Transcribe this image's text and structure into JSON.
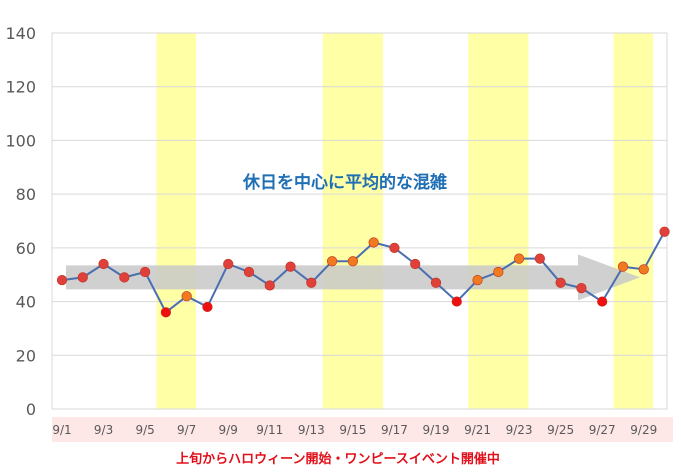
{
  "chart_data": {
    "type": "line",
    "x": [
      "9/1",
      "9/2",
      "9/3",
      "9/4",
      "9/5",
      "9/6",
      "9/7",
      "9/8",
      "9/9",
      "9/10",
      "9/11",
      "9/12",
      "9/13",
      "9/14",
      "9/15",
      "9/16",
      "9/17",
      "9/18",
      "9/19",
      "9/20",
      "9/21",
      "9/22",
      "9/23",
      "9/24",
      "9/25",
      "9/26",
      "9/27",
      "9/28",
      "9/29",
      "9/30"
    ],
    "x_tick_labels": [
      "9/1",
      "9/3",
      "9/5",
      "9/7",
      "9/9",
      "9/11",
      "9/13",
      "9/15",
      "9/17",
      "9/19",
      "9/21",
      "9/23",
      "9/25",
      "9/27",
      "9/29"
    ],
    "series": [
      {
        "values": [
          48,
          49,
          54,
          49,
          51,
          36,
          42,
          38,
          54,
          51,
          46,
          53,
          47,
          55,
          55,
          62,
          60,
          54,
          47,
          40,
          48,
          51,
          56,
          56,
          47,
          45,
          40,
          53,
          52,
          66
        ]
      }
    ],
    "ylim": [
      0,
      140
    ],
    "y_ticks": [
      0,
      20,
      40,
      60,
      80,
      100,
      120,
      140
    ],
    "grid": true,
    "highlighted_ranges": [
      {
        "start": "9/6",
        "end": "9/7"
      },
      {
        "start": "9/14",
        "end": "9/16"
      },
      {
        "start": "9/21",
        "end": "9/23"
      },
      {
        "start": "9/28",
        "end": "9/29"
      }
    ],
    "annotation": "休日を中心に平均的な混雑",
    "footer_note": "上旬からハロウィーン開始・ワンピースイベント開催中",
    "colors": {
      "line": "#4a6fb0",
      "marker_weekday": "#e0403a",
      "marker_holiday": "#f07a20",
      "marker_low": "#ee1010",
      "highlight": "#ffffa6",
      "arrow": "#c8c8c8",
      "grid": "#d9d9d9",
      "axis_band": "#fde7e7",
      "annotation": "#1f6fb5",
      "footer": "#e0101a"
    }
  }
}
